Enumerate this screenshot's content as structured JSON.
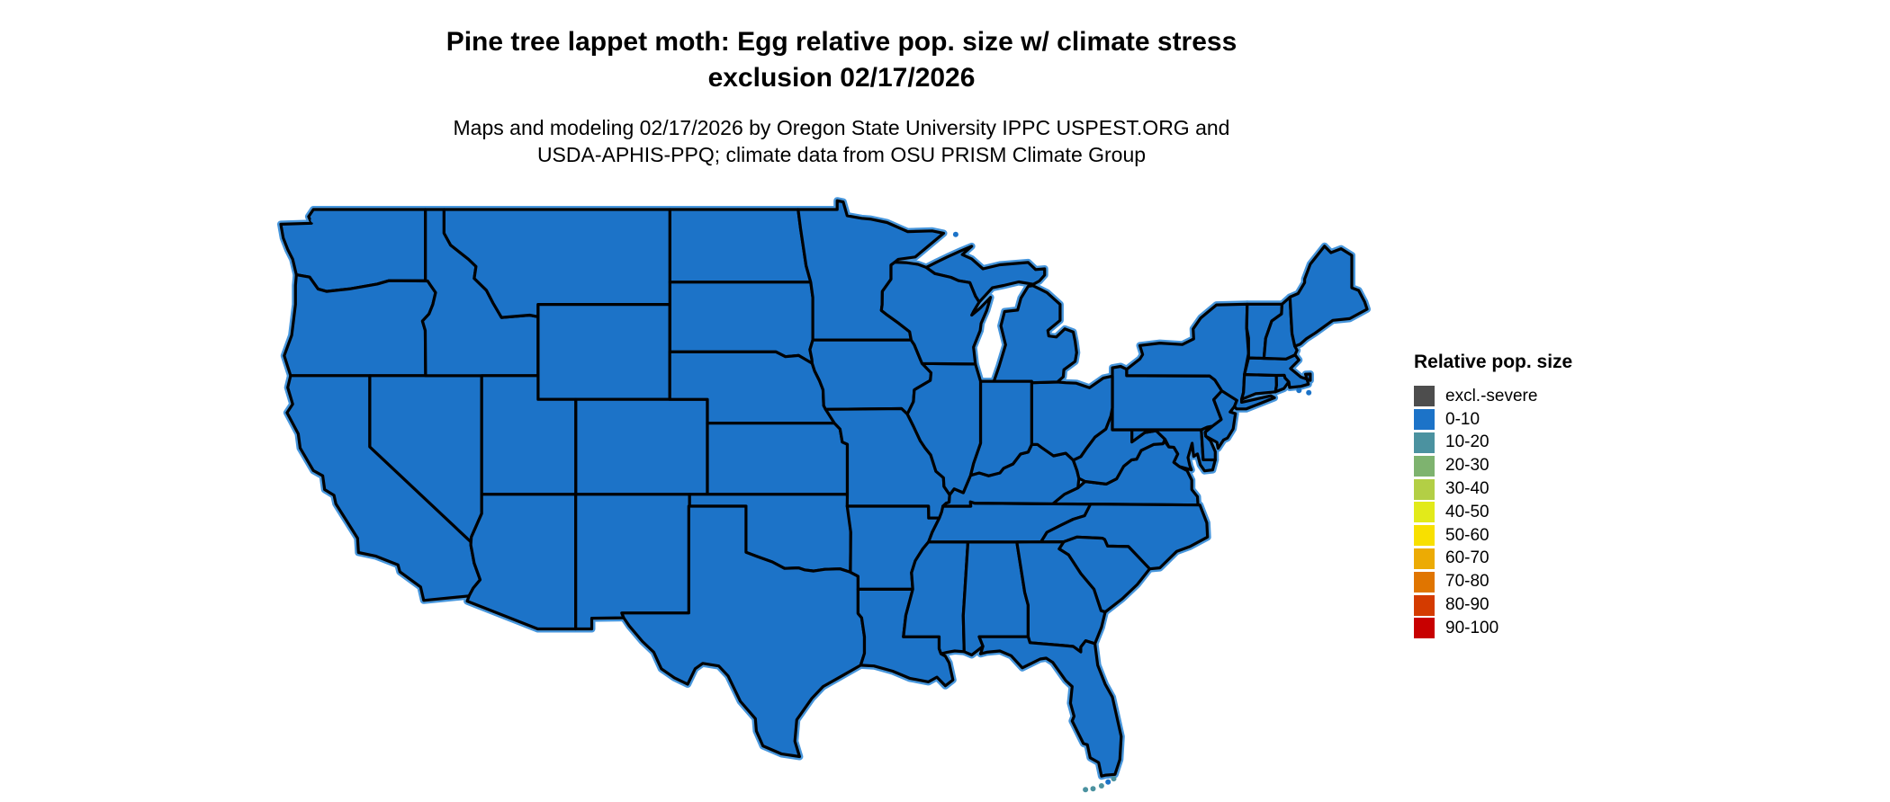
{
  "page": {
    "background": "#ffffff"
  },
  "title": {
    "line1": "Pine tree lappet moth: Egg relative pop. size w/ climate stress",
    "line2": "exclusion 02/17/2026"
  },
  "subtitle": {
    "line1": "Maps and modeling 02/17/2026 by Oregon State University IPPC USPEST.ORG and",
    "line2": "USDA-APHIS-PPQ; climate data from OSU PRISM Climate Group"
  },
  "map": {
    "region": "contiguous United States",
    "uniform_value_class": "0-10",
    "state_fill": "#1c73c8",
    "border_color": "#000000",
    "coast_halo": "#4796dc",
    "islands": [
      {
        "name": "san-juan-islands",
        "lon": -123.0,
        "lat": 48.55,
        "color": "#1c73c8"
      },
      {
        "name": "isle-royale",
        "lon": -88.85,
        "lat": 47.95,
        "color": "#1c73c8"
      },
      {
        "name": "marthas-vineyard",
        "lon": -70.6,
        "lat": 41.38,
        "color": "#1c73c8"
      },
      {
        "name": "nantucket",
        "lon": -70.08,
        "lat": 41.28,
        "color": "#1c73c8"
      },
      {
        "name": "florida-keys-1",
        "lon": -80.45,
        "lat": 25.02,
        "color": "#4b92a0"
      },
      {
        "name": "florida-keys-2",
        "lon": -80.75,
        "lat": 24.88,
        "color": "#1c73c8"
      },
      {
        "name": "florida-keys-3",
        "lon": -81.1,
        "lat": 24.72,
        "color": "#4b92a0"
      },
      {
        "name": "florida-keys-4",
        "lon": -81.55,
        "lat": 24.6,
        "color": "#4b92a0"
      },
      {
        "name": "florida-keys-5",
        "lon": -81.95,
        "lat": 24.56,
        "color": "#4b92a0"
      }
    ]
  },
  "legend": {
    "title": "Relative pop. size",
    "entries": [
      {
        "label": "excl.-severe",
        "color": "#4d4d4d"
      },
      {
        "label": "0-10",
        "color": "#1c73c8"
      },
      {
        "label": "10-20",
        "color": "#4b92a0"
      },
      {
        "label": "20-30",
        "color": "#7eb36f"
      },
      {
        "label": "30-40",
        "color": "#b3cf45"
      },
      {
        "label": "40-50",
        "color": "#e2ea1a"
      },
      {
        "label": "50-60",
        "color": "#f8e000"
      },
      {
        "label": "60-70",
        "color": "#ecab04"
      },
      {
        "label": "70-80",
        "color": "#e07500"
      },
      {
        "label": "80-90",
        "color": "#d43b00"
      },
      {
        "label": "90-100",
        "color": "#c80000"
      }
    ]
  }
}
